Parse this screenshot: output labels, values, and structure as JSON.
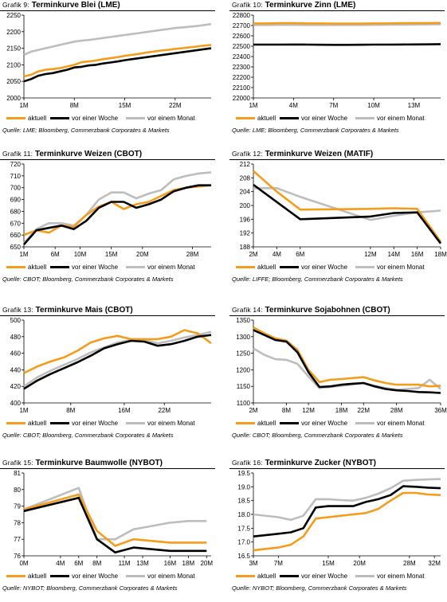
{
  "colors": {
    "aktuell": "#f59c1a",
    "vor_einer_woche": "#000000",
    "vor_einem_monat": "#bdbdbd"
  },
  "legend": {
    "aktuell": "aktuell",
    "vor_einer_woche": "vor einer Woche",
    "vor_einem_monat": "vor einem Monat"
  },
  "chart_data": [
    {
      "type": "line",
      "prefix": "Grafik 9:",
      "title": "Terminkurve Blei (LME)",
      "source": "Quelle: LME; Bloomberg, Commerzbank Corporates & Markets",
      "x": [
        1,
        2,
        3,
        4,
        5,
        6,
        7,
        8,
        9,
        10,
        11,
        12,
        13,
        14,
        15,
        16,
        17,
        18,
        19,
        20,
        21,
        22,
        23,
        24,
        25,
        26,
        27
      ],
      "xticks": [
        1,
        8,
        15,
        22
      ],
      "xtick_labels": [
        "1M",
        "8M",
        "15M",
        "22M"
      ],
      "xlim": [
        1,
        27
      ],
      "ylim": [
        2000,
        2250
      ],
      "yticks": [
        2000,
        2050,
        2100,
        2150,
        2200,
        2250
      ],
      "ytick_labels": [
        "2000",
        "2050",
        "2100",
        "2150",
        "2200",
        "2250"
      ],
      "series": [
        {
          "name": "aktuell",
          "values": [
            2065,
            2070,
            2080,
            2085,
            2087,
            2090,
            2095,
            2100,
            2108,
            2110,
            2113,
            2117,
            2120,
            2123,
            2127,
            2130,
            2133,
            2137,
            2140,
            2143,
            2145,
            2148,
            2150,
            2153,
            2155,
            2158,
            2160
          ]
        },
        {
          "name": "vor einer Woche",
          "values": [
            2050,
            2057,
            2067,
            2072,
            2075,
            2080,
            2085,
            2092,
            2094,
            2098,
            2100,
            2104,
            2107,
            2110,
            2114,
            2117,
            2120,
            2123,
            2126,
            2129,
            2132,
            2135,
            2138,
            2141,
            2144,
            2147,
            2150
          ]
        },
        {
          "name": "vor einem Monat",
          "values": [
            2130,
            2140,
            2145,
            2150,
            2155,
            2160,
            2165,
            2170,
            2173,
            2175,
            2178,
            2181,
            2184,
            2187,
            2190,
            2193,
            2196,
            2199,
            2202,
            2205,
            2208,
            2211,
            2213,
            2215,
            2217,
            2220,
            2223
          ]
        }
      ]
    },
    {
      "type": "line",
      "prefix": "Grafik 10:",
      "title": "Terminkurve Zinn (LME)",
      "source": "Quelle: LME; Bloomberg, Commerzbank Corporates & Markets",
      "x": [
        1,
        2,
        3,
        4,
        5,
        6,
        7,
        8,
        9,
        10,
        11,
        12,
        13,
        14,
        15
      ],
      "xticks": [
        1,
        4,
        7,
        10,
        13
      ],
      "xtick_labels": [
        "1M",
        "4M",
        "7M",
        "10M",
        "13M"
      ],
      "xlim": [
        1,
        15
      ],
      "ylim": [
        22000,
        22800
      ],
      "yticks": [
        22000,
        22100,
        22200,
        22300,
        22400,
        22500,
        22600,
        22700,
        22800
      ],
      "ytick_labels": [
        "22000",
        "22100",
        "22200",
        "22300",
        "22400",
        "22500",
        "22600",
        "22700",
        "22800"
      ],
      "series": [
        {
          "name": "aktuell",
          "values": [
            22720,
            22720,
            22722,
            22722,
            22720,
            22720,
            22718,
            22718,
            22718,
            22720,
            22720,
            22722,
            22722,
            22724,
            22725
          ]
        },
        {
          "name": "vor einer Woche",
          "values": [
            22515,
            22515,
            22515,
            22516,
            22515,
            22514,
            22513,
            22513,
            22514,
            22515,
            22515,
            22516,
            22517,
            22518,
            22520
          ]
        },
        {
          "name": "vor einem Monat",
          "values": [
            22705,
            22705,
            22706,
            22706,
            22705,
            22704,
            22704,
            22704,
            22705,
            22706,
            22707,
            22708,
            22709,
            22710,
            22712
          ]
        }
      ]
    },
    {
      "type": "line",
      "prefix": "Grafik 11:",
      "title": "Terminkurve Weizen (CBOT)",
      "source": "Quelle: CBOT; Bloomberg, Commerzbank Corporates & Markets",
      "x": [
        1,
        3,
        5,
        7,
        9,
        11,
        13,
        15,
        17,
        19,
        21,
        23,
        25,
        27,
        29,
        31
      ],
      "xticks": [
        1,
        6,
        10,
        15,
        20,
        28
      ],
      "xtick_labels": [
        "1M",
        "6M",
        "10M",
        "15M",
        "20M",
        "28M"
      ],
      "xlim": [
        1,
        31
      ],
      "ylim": [
        650,
        720
      ],
      "yticks": [
        650,
        660,
        670,
        680,
        690,
        700,
        710,
        720
      ],
      "ytick_labels": [
        "650",
        "660",
        "670",
        "680",
        "690",
        "700",
        "710",
        "720"
      ],
      "series": [
        {
          "name": "aktuell",
          "values": [
            660,
            664,
            662,
            668,
            667,
            677,
            684,
            688,
            682,
            686,
            688,
            693,
            698,
            700,
            701,
            702
          ]
        },
        {
          "name": "vor einer Woche",
          "values": [
            652,
            664,
            666,
            668,
            665,
            672,
            683,
            688,
            688,
            683,
            686,
            690,
            697,
            700,
            702,
            702
          ]
        },
        {
          "name": "vor einem Monat",
          "values": [
            653,
            665,
            670,
            670,
            668,
            677,
            690,
            696,
            696,
            691,
            695,
            698,
            707,
            710,
            712,
            713
          ]
        }
      ]
    },
    {
      "type": "line",
      "prefix": "Grafik 12:",
      "title": "Terminkurve Weizen (MATIF)",
      "source": "Quelle: LIFFE; Bloomberg, Commerzbank Corporates & Markets",
      "x": [
        2,
        4,
        6,
        12,
        14,
        16,
        18
      ],
      "xticks": [
        2,
        4,
        6,
        12,
        14,
        16,
        18
      ],
      "xtick_labels": [
        "2M",
        "4M",
        "6M",
        "12M",
        "14M",
        "16M",
        "18M"
      ],
      "xlim": [
        2,
        18
      ],
      "ylim": [
        188,
        212
      ],
      "yticks": [
        188,
        192,
        196,
        200,
        204,
        208,
        212
      ],
      "ytick_labels": [
        "188",
        "192",
        "196",
        "200",
        "204",
        "208",
        "212"
      ],
      "series": [
        {
          "name": "aktuell",
          "values": [
            210,
            204,
            198.8,
            199,
            199.2,
            199,
            189.5
          ]
        },
        {
          "name": "vor einer Woche",
          "values": [
            206,
            201,
            196,
            196.8,
            197.8,
            198,
            189
          ]
        },
        {
          "name": "vor einem Monat",
          "values": [
            205,
            205,
            202.5,
            195.8,
            197,
            198,
            198.5
          ]
        }
      ]
    },
    {
      "type": "line",
      "prefix": "Grafik 13:",
      "title": "Terminkurve Mais (CBOT)",
      "source": "Quelle: CBOT; Bloomberg, Commerzbank Corporates & Markets",
      "x": [
        1,
        3,
        5,
        7,
        9,
        11,
        13,
        15,
        17,
        19,
        21,
        23,
        25,
        27,
        29
      ],
      "xticks": [
        1,
        8,
        16,
        22
      ],
      "xtick_labels": [
        "1M",
        "8M",
        "16M",
        "22M"
      ],
      "xlim": [
        1,
        29
      ],
      "ylim": [
        400,
        500
      ],
      "yticks": [
        400,
        420,
        440,
        460,
        480,
        500
      ],
      "ytick_labels": [
        "400",
        "420",
        "440",
        "460",
        "480",
        "500"
      ],
      "series": [
        {
          "name": "aktuell",
          "values": [
            436,
            444,
            450,
            455,
            463,
            473,
            478,
            481,
            477,
            477,
            477,
            480,
            488,
            484,
            472
          ]
        },
        {
          "name": "vor einer Woche",
          "values": [
            417,
            427,
            435,
            442,
            449,
            457,
            466,
            471,
            475,
            474,
            469,
            471,
            475,
            480,
            482
          ]
        },
        {
          "name": "vor einem Monat",
          "values": [
            420,
            431,
            439,
            446,
            453,
            461,
            467,
            473,
            476,
            476,
            472,
            475,
            479,
            482,
            486
          ]
        }
      ]
    },
    {
      "type": "line",
      "prefix": "Grafik 14:",
      "title": "Terminkurve Sojabohnen (CBOT)",
      "source": "Quelle: CBOT; Bloomberg, Commerzbank Corporates & Markets",
      "x": [
        2,
        4,
        6,
        8,
        10,
        12,
        14,
        16,
        18,
        20,
        22,
        24,
        26,
        28,
        30,
        32,
        34,
        36
      ],
      "xticks": [
        2,
        8,
        12,
        18,
        22,
        28,
        36
      ],
      "xtick_labels": [
        "2M",
        "8M",
        "12M",
        "18M",
        "22M",
        "28M",
        "36M"
      ],
      "xlim": [
        2,
        36
      ],
      "ylim": [
        1100,
        1350
      ],
      "yticks": [
        1100,
        1150,
        1200,
        1250,
        1300,
        1350
      ],
      "ytick_labels": [
        "1100",
        "1150",
        "1200",
        "1250",
        "1300",
        "1350"
      ],
      "series": [
        {
          "name": "aktuell",
          "values": [
            1328,
            1310,
            1295,
            1288,
            1260,
            1200,
            1163,
            1170,
            1172,
            1175,
            1178,
            1168,
            1160,
            1155,
            1155,
            1155,
            1150,
            1152
          ]
        },
        {
          "name": "vor einer Woche",
          "values": [
            1320,
            1305,
            1290,
            1285,
            1253,
            1193,
            1148,
            1150,
            1155,
            1158,
            1160,
            1150,
            1142,
            1138,
            1136,
            1133,
            1132,
            1130
          ]
        },
        {
          "name": "vor einem Monat",
          "values": [
            1265,
            1245,
            1232,
            1230,
            1218,
            1180,
            1145,
            1148,
            1152,
            1156,
            1160,
            1152,
            1145,
            1140,
            1142,
            1145,
            1170,
            1142
          ]
        }
      ]
    },
    {
      "type": "line",
      "prefix": "Grafik 15:",
      "title": "Terminkurve Baumwolle (NYBOT)",
      "source": "Quelle: NYBOT; Bloomberg, Commerzbank Corporates & Markets",
      "x": [
        0,
        6,
        8,
        10,
        12,
        14,
        16,
        18,
        20
      ],
      "xticks": [
        0,
        4,
        6,
        8,
        11,
        13,
        16,
        18,
        20
      ],
      "xtick_labels": [
        "0M",
        "4M",
        "6M",
        "8M",
        "11M",
        "13M",
        "16M",
        "18M",
        "20M"
      ],
      "xlim": [
        0,
        20.5
      ],
      "ylim": [
        76,
        81
      ],
      "yticks": [
        76,
        77,
        78,
        79,
        80,
        81
      ],
      "ytick_labels": [
        "76",
        "77",
        "78",
        "79",
        "80",
        "81"
      ],
      "series": [
        {
          "name": "aktuell",
          "values": [
            78.8,
            79.7,
            77.5,
            76.6,
            77.0,
            76.9,
            76.8,
            76.8,
            76.8
          ]
        },
        {
          "name": "vor einer Woche",
          "values": [
            78.7,
            79.5,
            77.0,
            76.2,
            76.5,
            76.4,
            76.3,
            76.3,
            76.3
          ]
        },
        {
          "name": "vor einem Monat",
          "values": [
            78.8,
            80.1,
            77.0,
            77.0,
            77.6,
            77.8,
            78.0,
            78.1,
            78.1
          ]
        }
      ]
    },
    {
      "type": "line",
      "prefix": "Grafik 16:",
      "title": "Terminkurve Zucker (NYBOT)",
      "source": "Quelle: NYBOT; Bloomberg, Commerzbank Corporates & Markets",
      "x": [
        3,
        7,
        9,
        11,
        13,
        15,
        17,
        19,
        21,
        23,
        25,
        27,
        29,
        31,
        33
      ],
      "xticks": [
        3,
        7,
        15,
        20,
        28,
        32
      ],
      "xtick_labels": [
        "3M",
        "7M",
        "15M",
        "20M",
        "28M",
        "32M"
      ],
      "xlim": [
        3,
        33
      ],
      "ylim": [
        16.5,
        19.5
      ],
      "yticks": [
        16.5,
        17.0,
        17.5,
        18.0,
        18.5,
        19.0,
        19.5
      ],
      "ytick_labels": [
        "16.5",
        "17.0",
        "17.5",
        "18.0",
        "18.5",
        "19.0",
        "19.5"
      ],
      "series": [
        {
          "name": "aktuell",
          "values": [
            16.7,
            16.8,
            16.9,
            17.2,
            17.85,
            17.9,
            17.95,
            18.0,
            18.05,
            18.2,
            18.5,
            18.78,
            18.78,
            18.72,
            18.7
          ]
        },
        {
          "name": "vor einer Woche",
          "values": [
            17.2,
            17.3,
            17.35,
            17.5,
            18.25,
            18.3,
            18.3,
            18.3,
            18.45,
            18.55,
            18.7,
            19.02,
            19.0,
            18.97,
            18.95
          ]
        },
        {
          "name": "vor einem Monat",
          "values": [
            18.0,
            17.9,
            17.8,
            17.95,
            18.55,
            18.55,
            18.52,
            18.5,
            18.6,
            18.75,
            18.95,
            19.22,
            19.25,
            19.27,
            19.28
          ]
        }
      ]
    }
  ]
}
